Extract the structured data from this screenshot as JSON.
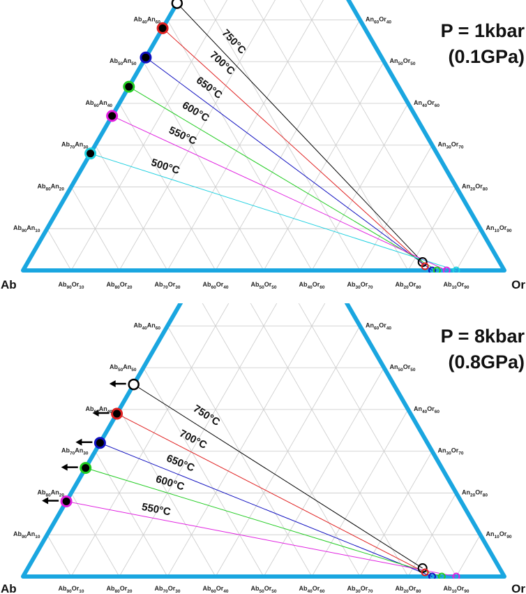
{
  "corners": {
    "left": "Ab",
    "right": "Or"
  },
  "left_edge_ticks": [
    {
      "a": "Ab",
      "as": "90",
      "b": "An",
      "bs": "10"
    },
    {
      "a": "Ab",
      "as": "80",
      "b": "An",
      "bs": "20"
    },
    {
      "a": "Ab",
      "as": "70",
      "b": "An",
      "bs": "30"
    },
    {
      "a": "Ab",
      "as": "60",
      "b": "An",
      "bs": "40"
    },
    {
      "a": "Ab",
      "as": "50",
      "b": "An",
      "bs": "50"
    },
    {
      "a": "Ab",
      "as": "40",
      "b": "An",
      "bs": "60"
    }
  ],
  "right_edge_ticks": [
    {
      "a": "An",
      "as": "10",
      "b": "Or",
      "bs": "90"
    },
    {
      "a": "An",
      "as": "20",
      "b": "Or",
      "bs": "80"
    },
    {
      "a": "An",
      "as": "30",
      "b": "Or",
      "bs": "70"
    },
    {
      "a": "An",
      "as": "40",
      "b": "Or",
      "bs": "60"
    },
    {
      "a": "An",
      "as": "50",
      "b": "Or",
      "bs": "50"
    },
    {
      "a": "An",
      "as": "60",
      "b": "Or",
      "bs": "40"
    }
  ],
  "base_ticks": [
    {
      "a": "Ab",
      "as": "90",
      "b": "Or",
      "bs": "10"
    },
    {
      "a": "Ab",
      "as": "80",
      "b": "Or",
      "bs": "20"
    },
    {
      "a": "Ab",
      "as": "70",
      "b": "Or",
      "bs": "30"
    },
    {
      "a": "Ab",
      "as": "60",
      "b": "Or",
      "bs": "40"
    },
    {
      "a": "Ab",
      "as": "50",
      "b": "Or",
      "bs": "50"
    },
    {
      "a": "Ab",
      "as": "40",
      "b": "Or",
      "bs": "60"
    },
    {
      "a": "Ab",
      "as": "30",
      "b": "Or",
      "bs": "70"
    },
    {
      "a": "Ab",
      "as": "20",
      "b": "Or",
      "bs": "80"
    },
    {
      "a": "Ab",
      "as": "10",
      "b": "Or",
      "bs": "90"
    }
  ],
  "colors": {
    "frame": "#1aa6e0",
    "grid": "#cfcfcf",
    "arrow": "#000000"
  },
  "panels": [
    {
      "title_line1": "P = 1kbar",
      "title_line2": "(0.1GPa)",
      "isotherms": [
        {
          "label": "750°C",
          "color": "#000000",
          "plag": {
            "an": 0.64,
            "ab": 0.36
          },
          "kfs": {
            "an": 0.02,
            "ab": 0.16
          },
          "filled": false,
          "arrow": false
        },
        {
          "label": "700°C",
          "color": "#e02020",
          "plag": {
            "an": 0.58,
            "ab": 0.42
          },
          "kfs": {
            "an": 0.01,
            "ab": 0.16
          },
          "filled": true,
          "arrow": false
        },
        {
          "label": "650°C",
          "color": "#1010c0",
          "plag": {
            "an": 0.51,
            "ab": 0.49
          },
          "kfs": {
            "an": 0.0,
            "ab": 0.15
          },
          "filled": true,
          "arrow": false
        },
        {
          "label": "600°C",
          "color": "#22cc22",
          "plag": {
            "an": 0.44,
            "ab": 0.56
          },
          "kfs": {
            "an": 0.0,
            "ab": 0.14
          },
          "filled": true,
          "arrow": false
        },
        {
          "label": "550°C",
          "color": "#e020e0",
          "plag": {
            "an": 0.37,
            "ab": 0.63
          },
          "kfs": {
            "an": 0.0,
            "ab": 0.12
          },
          "filled": true,
          "arrow": false
        },
        {
          "label": "500°C",
          "color": "#20d0e0",
          "plag": {
            "an": 0.28,
            "ab": 0.72
          },
          "kfs": {
            "an": 0.0,
            "ab": 0.1
          },
          "filled": true,
          "arrow": false
        }
      ]
    },
    {
      "title_line1": "P = 8kbar",
      "title_line2": "(0.8GPa)",
      "isotherms": [
        {
          "label": "750°C",
          "color": "#000000",
          "plag": {
            "an": 0.46,
            "ab": 0.54
          },
          "kfs": {
            "an": 0.02,
            "ab": 0.16
          },
          "filled": false,
          "arrow": true
        },
        {
          "label": "700°C",
          "color": "#e02020",
          "plag": {
            "an": 0.39,
            "ab": 0.61
          },
          "kfs": {
            "an": 0.01,
            "ab": 0.16
          },
          "filled": true,
          "arrow": true
        },
        {
          "label": "650°C",
          "color": "#1010c0",
          "plag": {
            "an": 0.32,
            "ab": 0.68
          },
          "kfs": {
            "an": 0.0,
            "ab": 0.15
          },
          "filled": true,
          "arrow": true
        },
        {
          "label": "600°C",
          "color": "#22cc22",
          "plag": {
            "an": 0.26,
            "ab": 0.74
          },
          "kfs": {
            "an": 0.0,
            "ab": 0.13
          },
          "filled": true,
          "arrow": true
        },
        {
          "label": "550°C",
          "color": "#e020e0",
          "plag": {
            "an": 0.18,
            "ab": 0.82
          },
          "kfs": {
            "an": 0.0,
            "ab": 0.1
          },
          "filled": true,
          "arrow": true
        }
      ]
    }
  ]
}
